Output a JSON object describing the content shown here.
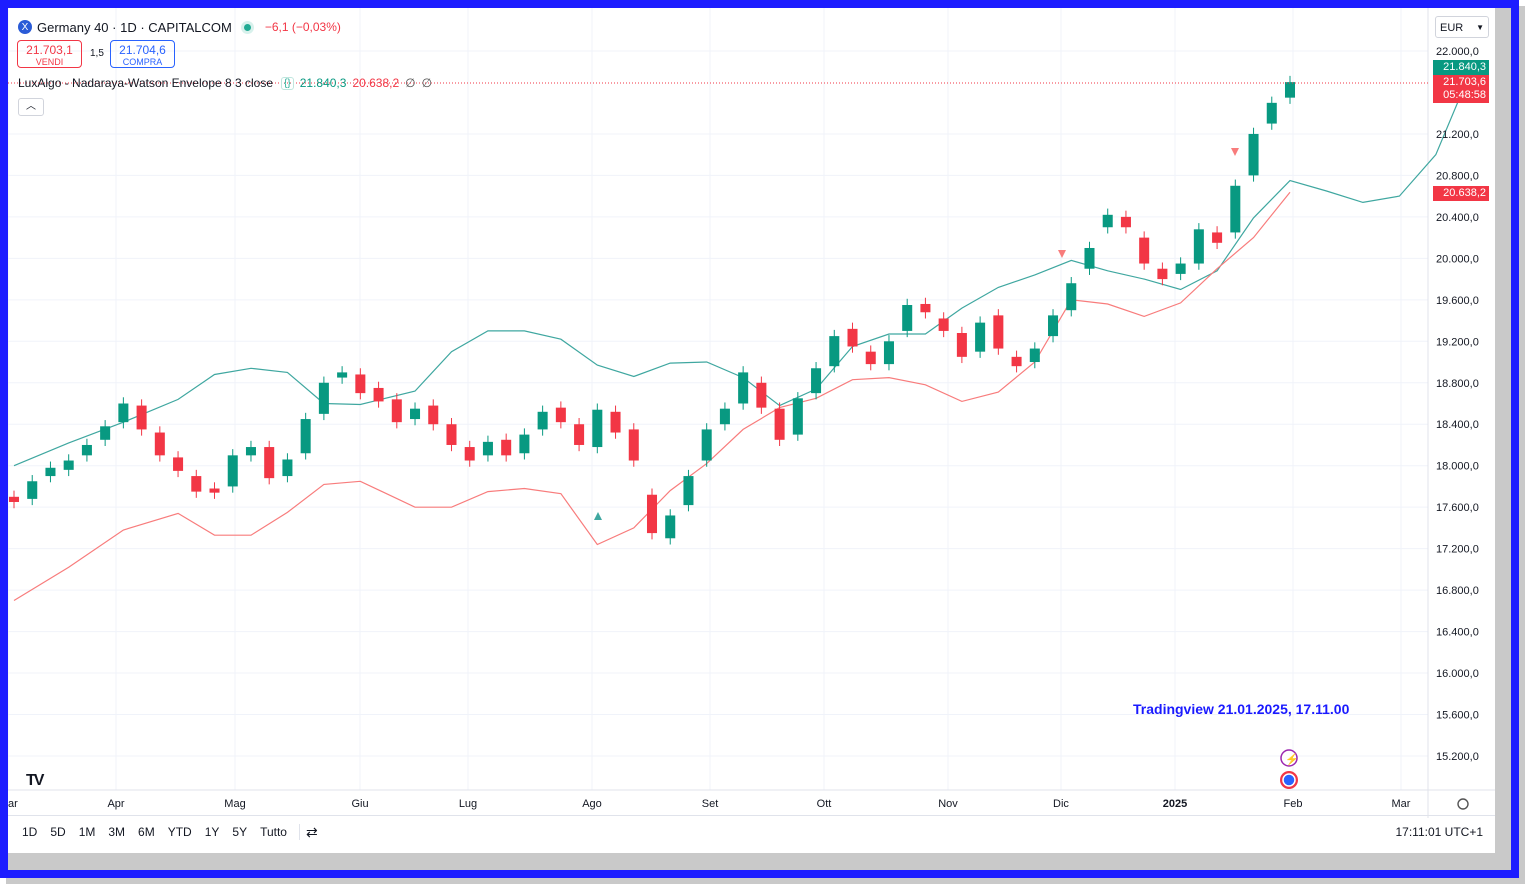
{
  "header": {
    "symbol_icon": "X",
    "title": "Germany 40 · 1D · CAPITALCOM",
    "change": "−6,1 (−0,03%)"
  },
  "trade": {
    "sell_price": "21.703,1",
    "sell_label": "VENDI",
    "spread": "1,5",
    "buy_price": "21.704,6",
    "buy_label": "COMPRA"
  },
  "indicator": {
    "name": "LuxAlgo - Nadaraya-Watson Envelope 8 3 close",
    "settings_icon": "{}",
    "upper": "21.840,3",
    "lower": "20.638,2",
    "v3": "∅",
    "v4": "∅"
  },
  "collapse_icon": "chevron-up-icon",
  "currency": "EUR",
  "axis": {
    "price_ticks": [
      "22.000,0",
      "21.200,0",
      "20.800,0",
      "20.400,0",
      "20.000,0",
      "19.600,0",
      "19.200,0",
      "18.800,0",
      "18.400,0",
      "18.000,0",
      "17.600,0",
      "17.200,0",
      "16.800,0",
      "16.400,0",
      "16.000,0",
      "15.600,0",
      "15.200,0"
    ],
    "time_ticks": [
      "ar",
      "Apr",
      "Mag",
      "Giu",
      "Lug",
      "Ago",
      "Set",
      "Ott",
      "Nov",
      "Dic",
      "2025",
      "Feb",
      "Mar"
    ]
  },
  "badges": {
    "upper": "21.840,3",
    "price": "21.703,6",
    "countdown": "05:48:58",
    "lower": "20.638,2"
  },
  "caption": "Tradingview 21.01.2025, 17.11.00",
  "logo": "TV",
  "bottombar": {
    "ranges": [
      "1D",
      "5D",
      "1M",
      "3M",
      "6M",
      "YTD",
      "1Y",
      "5Y",
      "Tutto"
    ],
    "time": "17:11:01 UTC+1"
  },
  "colors": {
    "up": "#089981",
    "down": "#f23645",
    "envelope_upper": "#3fa7a0",
    "envelope_lower": "#f87c7c",
    "caption": "#1a1aff"
  },
  "chart_data": {
    "type": "candlestick",
    "symbol": "Germany 40",
    "interval": "1D",
    "ylim": [
      15000,
      22200
    ],
    "envelope_upper": [
      [
        0,
        18000
      ],
      [
        3,
        18220
      ],
      [
        6,
        18420
      ],
      [
        9,
        18640
      ],
      [
        11,
        18880
      ],
      [
        13,
        18940
      ],
      [
        15,
        18900
      ],
      [
        17,
        18600
      ],
      [
        19,
        18590
      ],
      [
        22,
        18720
      ],
      [
        24,
        19100
      ],
      [
        26,
        19300
      ],
      [
        28,
        19300
      ],
      [
        30,
        19220
      ],
      [
        32,
        18970
      ],
      [
        34,
        18860
      ],
      [
        36,
        18990
      ],
      [
        38,
        19000
      ],
      [
        40,
        18850
      ],
      [
        42,
        18580
      ],
      [
        44,
        18740
      ],
      [
        46,
        19150
      ],
      [
        48,
        19270
      ],
      [
        50,
        19270
      ],
      [
        52,
        19520
      ],
      [
        54,
        19720
      ],
      [
        56,
        19840
      ],
      [
        58,
        19980
      ],
      [
        60,
        19880
      ],
      [
        62,
        19800
      ],
      [
        64,
        19700
      ],
      [
        66,
        19880
      ],
      [
        68,
        20390
      ],
      [
        70,
        20750
      ],
      [
        72,
        20650
      ],
      [
        74,
        20540
      ],
      [
        76,
        20600
      ],
      [
        78,
        21000
      ],
      [
        80,
        21840
      ]
    ],
    "envelope_lower": [
      [
        0,
        16700
      ],
      [
        3,
        17020
      ],
      [
        6,
        17380
      ],
      [
        9,
        17540
      ],
      [
        11,
        17330
      ],
      [
        13,
        17330
      ],
      [
        15,
        17550
      ],
      [
        17,
        17820
      ],
      [
        19,
        17850
      ],
      [
        22,
        17600
      ],
      [
        24,
        17600
      ],
      [
        26,
        17750
      ],
      [
        28,
        17780
      ],
      [
        30,
        17730
      ],
      [
        32,
        17240
      ],
      [
        34,
        17400
      ],
      [
        36,
        17760
      ],
      [
        38,
        18020
      ],
      [
        40,
        18350
      ],
      [
        42,
        18560
      ],
      [
        44,
        18650
      ],
      [
        46,
        18830
      ],
      [
        48,
        18850
      ],
      [
        50,
        18780
      ],
      [
        52,
        18620
      ],
      [
        54,
        18710
      ],
      [
        56,
        19000
      ],
      [
        58,
        19600
      ],
      [
        60,
        19560
      ],
      [
        62,
        19440
      ],
      [
        64,
        19570
      ],
      [
        66,
        19900
      ],
      [
        68,
        20200
      ],
      [
        70,
        20638
      ]
    ],
    "candles": [
      {
        "t": 0,
        "o": 17700,
        "c": 17650
      },
      {
        "t": 1,
        "o": 17680,
        "c": 17850
      },
      {
        "t": 2,
        "o": 17900,
        "c": 17980
      },
      {
        "t": 3,
        "o": 17960,
        "c": 18050
      },
      {
        "t": 4,
        "o": 18100,
        "c": 18200
      },
      {
        "t": 5,
        "o": 18250,
        "c": 18380
      },
      {
        "t": 6,
        "o": 18420,
        "c": 18600
      },
      {
        "t": 7,
        "o": 18580,
        "c": 18350
      },
      {
        "t": 8,
        "o": 18320,
        "c": 18100
      },
      {
        "t": 9,
        "o": 18080,
        "c": 17950
      },
      {
        "t": 10,
        "o": 17900,
        "c": 17750
      },
      {
        "t": 11,
        "o": 17780,
        "c": 17740
      },
      {
        "t": 12,
        "o": 17800,
        "c": 18100
      },
      {
        "t": 13,
        "o": 18100,
        "c": 18180
      },
      {
        "t": 14,
        "o": 18180,
        "c": 17880
      },
      {
        "t": 15,
        "o": 17900,
        "c": 18060
      },
      {
        "t": 16,
        "o": 18120,
        "c": 18450
      },
      {
        "t": 17,
        "o": 18500,
        "c": 18800
      },
      {
        "t": 18,
        "o": 18850,
        "c": 18900
      },
      {
        "t": 19,
        "o": 18880,
        "c": 18700
      },
      {
        "t": 20,
        "o": 18750,
        "c": 18620
      },
      {
        "t": 21,
        "o": 18640,
        "c": 18420
      },
      {
        "t": 22,
        "o": 18450,
        "c": 18550
      },
      {
        "t": 23,
        "o": 18580,
        "c": 18400
      },
      {
        "t": 24,
        "o": 18400,
        "c": 18200
      },
      {
        "t": 25,
        "o": 18180,
        "c": 18050
      },
      {
        "t": 26,
        "o": 18100,
        "c": 18230
      },
      {
        "t": 27,
        "o": 18250,
        "c": 18100
      },
      {
        "t": 28,
        "o": 18120,
        "c": 18300
      },
      {
        "t": 29,
        "o": 18350,
        "c": 18520
      },
      {
        "t": 30,
        "o": 18560,
        "c": 18420
      },
      {
        "t": 31,
        "o": 18400,
        "c": 18200
      },
      {
        "t": 32,
        "o": 18180,
        "c": 18540
      },
      {
        "t": 33,
        "o": 18520,
        "c": 18320
      },
      {
        "t": 34,
        "o": 18350,
        "c": 18050
      },
      {
        "t": 35,
        "o": 17720,
        "c": 17350
      },
      {
        "t": 36,
        "o": 17300,
        "c": 17520
      },
      {
        "t": 37,
        "o": 17620,
        "c": 17900
      },
      {
        "t": 38,
        "o": 18050,
        "c": 18350
      },
      {
        "t": 39,
        "o": 18400,
        "c": 18550
      },
      {
        "t": 40,
        "o": 18600,
        "c": 18900
      },
      {
        "t": 41,
        "o": 18800,
        "c": 18560
      },
      {
        "t": 42,
        "o": 18550,
        "c": 18250
      },
      {
        "t": 43,
        "o": 18300,
        "c": 18650
      },
      {
        "t": 44,
        "o": 18700,
        "c": 18940
      },
      {
        "t": 45,
        "o": 18960,
        "c": 19250
      },
      {
        "t": 46,
        "o": 19320,
        "c": 19150
      },
      {
        "t": 47,
        "o": 19100,
        "c": 18980
      },
      {
        "t": 48,
        "o": 18980,
        "c": 19200
      },
      {
        "t": 49,
        "o": 19300,
        "c": 19550
      },
      {
        "t": 50,
        "o": 19560,
        "c": 19480
      },
      {
        "t": 51,
        "o": 19420,
        "c": 19300
      },
      {
        "t": 52,
        "o": 19280,
        "c": 19050
      },
      {
        "t": 53,
        "o": 19100,
        "c": 19380
      },
      {
        "t": 54,
        "o": 19450,
        "c": 19130
      },
      {
        "t": 55,
        "o": 19050,
        "c": 18960
      },
      {
        "t": 56,
        "o": 19000,
        "c": 19130
      },
      {
        "t": 57,
        "o": 19250,
        "c": 19450
      },
      {
        "t": 58,
        "o": 19500,
        "c": 19760
      },
      {
        "t": 59,
        "o": 19900,
        "c": 20100
      },
      {
        "t": 60,
        "o": 20300,
        "c": 20420
      },
      {
        "t": 61,
        "o": 20400,
        "c": 20300
      },
      {
        "t": 62,
        "o": 20200,
        "c": 19950
      },
      {
        "t": 63,
        "o": 19900,
        "c": 19800
      },
      {
        "t": 64,
        "o": 19850,
        "c": 19950
      },
      {
        "t": 65,
        "o": 19950,
        "c": 20280
      },
      {
        "t": 66,
        "o": 20250,
        "c": 20150
      },
      {
        "t": 67,
        "o": 20250,
        "c": 20700
      },
      {
        "t": 68,
        "o": 20800,
        "c": 21200
      },
      {
        "t": 69,
        "o": 21300,
        "c": 21500
      },
      {
        "t": 70,
        "o": 21550,
        "c": 21700
      }
    ]
  }
}
